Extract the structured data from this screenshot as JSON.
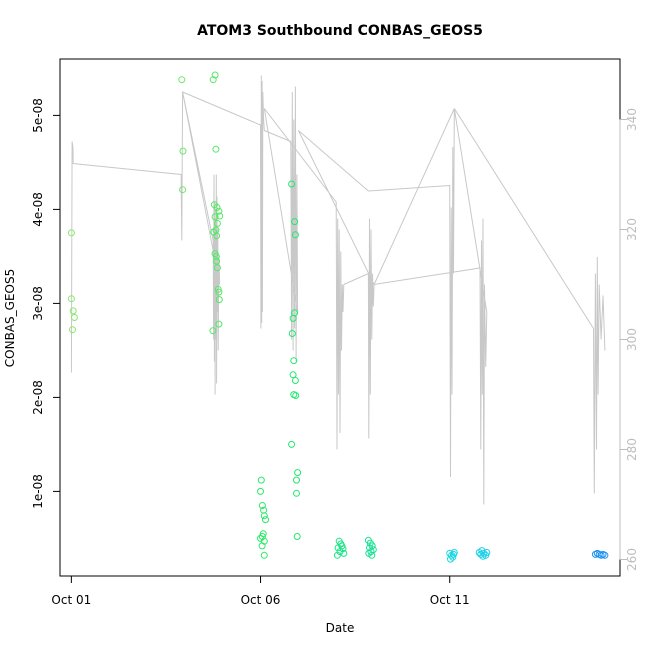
{
  "chart_data": {
    "type": "scatter",
    "title": "ATOM3 Southbound CONBAS_GEOS5",
    "xlabel": "Date",
    "ylabel": "CONBAS_GEOS5",
    "x_ticks": [
      "Oct 01",
      "Oct 06",
      "Oct 11"
    ],
    "y_ticks_left": [
      "1e-08",
      "2e-08",
      "3e-08",
      "4e-08",
      "5e-08"
    ],
    "y_ticks_right": [
      "260",
      "280",
      "300",
      "320",
      "340"
    ],
    "xlim_days": [
      -0.3,
      14.5
    ],
    "ylim_left": [
      1e-09,
      5.6e-08
    ],
    "ylim_right": [
      257,
      351
    ],
    "grid": false,
    "colors": {
      "line": "#c8c8c8",
      "points_early": "#7fe36a",
      "points_mid": "#18e07a",
      "points_late": "#18d8e0",
      "points_end": "#1a8ef0",
      "right_axis": "#bdbdbd"
    },
    "series": [
      {
        "kind": "points",
        "points": [
          {
            "x": 0.0,
            "y": 3.75e-08,
            "c": "#8ae86a"
          },
          {
            "x": 0.0,
            "y": 3.05e-08,
            "c": "#8ae86a"
          },
          {
            "x": 0.05,
            "y": 2.92e-08,
            "c": "#8ae86a"
          },
          {
            "x": 0.08,
            "y": 2.85e-08,
            "c": "#8ae86a"
          },
          {
            "x": 0.03,
            "y": 2.72e-08,
            "c": "#8ae86a"
          },
          {
            "x": 2.92,
            "y": 5.38e-08,
            "c": "#6ee868"
          },
          {
            "x": 2.95,
            "y": 4.62e-08,
            "c": "#6ee868"
          },
          {
            "x": 2.94,
            "y": 4.21e-08,
            "c": "#6ee868"
          },
          {
            "x": 3.75,
            "y": 5.38e-08,
            "c": "#55e866"
          },
          {
            "x": 3.8,
            "y": 5.43e-08,
            "c": "#55e866"
          },
          {
            "x": 3.82,
            "y": 4.64e-08,
            "c": "#55e866"
          },
          {
            "x": 3.78,
            "y": 4.05e-08,
            "c": "#55e866"
          },
          {
            "x": 3.85,
            "y": 4.02e-08,
            "c": "#55e866"
          },
          {
            "x": 3.9,
            "y": 3.98e-08,
            "c": "#55e866"
          },
          {
            "x": 3.92,
            "y": 3.93e-08,
            "c": "#55e866"
          },
          {
            "x": 3.8,
            "y": 3.92e-08,
            "c": "#55e866"
          },
          {
            "x": 3.86,
            "y": 3.85e-08,
            "c": "#55e866"
          },
          {
            "x": 3.82,
            "y": 3.78e-08,
            "c": "#55e866"
          },
          {
            "x": 3.76,
            "y": 3.76e-08,
            "c": "#55e866"
          },
          {
            "x": 3.84,
            "y": 3.72e-08,
            "c": "#55e866"
          },
          {
            "x": 3.8,
            "y": 3.53e-08,
            "c": "#55e866"
          },
          {
            "x": 3.83,
            "y": 3.5e-08,
            "c": "#55e866"
          },
          {
            "x": 3.84,
            "y": 3.45e-08,
            "c": "#55e866"
          },
          {
            "x": 3.86,
            "y": 3.38e-08,
            "c": "#55e866"
          },
          {
            "x": 3.88,
            "y": 3.15e-08,
            "c": "#55e866"
          },
          {
            "x": 3.9,
            "y": 3.12e-08,
            "c": "#55e866"
          },
          {
            "x": 3.91,
            "y": 3.04e-08,
            "c": "#55e866"
          },
          {
            "x": 3.9,
            "y": 2.78e-08,
            "c": "#55e866"
          },
          {
            "x": 3.74,
            "y": 2.71e-08,
            "c": "#55e866"
          },
          {
            "x": 5.02,
            "y": 1.12e-08,
            "c": "#2ee86a"
          },
          {
            "x": 5.0,
            "y": 1e-08,
            "c": "#2ee86a"
          },
          {
            "x": 5.05,
            "y": 8.5e-09,
            "c": "#2ee86a"
          },
          {
            "x": 5.08,
            "y": 8e-09,
            "c": "#2ee86a"
          },
          {
            "x": 5.1,
            "y": 7.4e-09,
            "c": "#2ee86a"
          },
          {
            "x": 5.13,
            "y": 7e-09,
            "c": "#2ee86a"
          },
          {
            "x": 5.07,
            "y": 5.5e-09,
            "c": "#2ee86a"
          },
          {
            "x": 5.05,
            "y": 5.2e-09,
            "c": "#2ee86a"
          },
          {
            "x": 5.0,
            "y": 5e-09,
            "c": "#2ee86a"
          },
          {
            "x": 5.1,
            "y": 4.7e-09,
            "c": "#2ee86a"
          },
          {
            "x": 5.04,
            "y": 4.2e-09,
            "c": "#2ee86a"
          },
          {
            "x": 5.1,
            "y": 3.2e-09,
            "c": "#2ee86a"
          },
          {
            "x": 5.82,
            "y": 4.27e-08,
            "c": "#22e870"
          },
          {
            "x": 5.9,
            "y": 3.87e-08,
            "c": "#22e870"
          },
          {
            "x": 5.92,
            "y": 3.73e-08,
            "c": "#22e870"
          },
          {
            "x": 5.9,
            "y": 2.9e-08,
            "c": "#22e870"
          },
          {
            "x": 5.86,
            "y": 2.84e-08,
            "c": "#22e870"
          },
          {
            "x": 5.84,
            "y": 2.68e-08,
            "c": "#22e870"
          },
          {
            "x": 5.88,
            "y": 2.39e-08,
            "c": "#22e870"
          },
          {
            "x": 5.86,
            "y": 2.24e-08,
            "c": "#22e870"
          },
          {
            "x": 5.92,
            "y": 2.18e-08,
            "c": "#22e870"
          },
          {
            "x": 5.88,
            "y": 2.03e-08,
            "c": "#22e870"
          },
          {
            "x": 5.93,
            "y": 2.02e-08,
            "c": "#22e870"
          },
          {
            "x": 5.82,
            "y": 1.5e-08,
            "c": "#22e870"
          },
          {
            "x": 5.98,
            "y": 1.2e-08,
            "c": "#22e870"
          },
          {
            "x": 5.95,
            "y": 1.12e-08,
            "c": "#22e870"
          },
          {
            "x": 5.95,
            "y": 9.8e-09,
            "c": "#22e870"
          },
          {
            "x": 5.97,
            "y": 5.2e-09,
            "c": "#22e870"
          },
          {
            "x": 7.08,
            "y": 4.7e-09,
            "c": "#1ae486"
          },
          {
            "x": 7.12,
            "y": 4.4e-09,
            "c": "#1ae486"
          },
          {
            "x": 7.05,
            "y": 4e-09,
            "c": "#1ae486"
          },
          {
            "x": 7.15,
            "y": 4.2e-09,
            "c": "#1ae486"
          },
          {
            "x": 7.18,
            "y": 3.9e-09,
            "c": "#1ae486"
          },
          {
            "x": 7.1,
            "y": 3.6e-09,
            "c": "#1ae486"
          },
          {
            "x": 7.2,
            "y": 3.4e-09,
            "c": "#1ae486"
          },
          {
            "x": 7.03,
            "y": 3.2e-09,
            "c": "#1ae486"
          },
          {
            "x": 7.85,
            "y": 4.8e-09,
            "c": "#18e095"
          },
          {
            "x": 7.9,
            "y": 4.5e-09,
            "c": "#18e095"
          },
          {
            "x": 7.95,
            "y": 4.2e-09,
            "c": "#18e095"
          },
          {
            "x": 7.88,
            "y": 4e-09,
            "c": "#18e095"
          },
          {
            "x": 7.98,
            "y": 3.8e-09,
            "c": "#18e095"
          },
          {
            "x": 7.92,
            "y": 3.6e-09,
            "c": "#18e095"
          },
          {
            "x": 7.86,
            "y": 3.4e-09,
            "c": "#18e095"
          },
          {
            "x": 7.94,
            "y": 3.2e-09,
            "c": "#18e095"
          },
          {
            "x": 10.0,
            "y": 3.4e-09,
            "c": "#1ad8e0"
          },
          {
            "x": 10.05,
            "y": 3.2e-09,
            "c": "#1ad8e0"
          },
          {
            "x": 10.1,
            "y": 3.3e-09,
            "c": "#1ad8e0"
          },
          {
            "x": 10.08,
            "y": 3e-09,
            "c": "#1ad8e0"
          },
          {
            "x": 10.02,
            "y": 2.8e-09,
            "c": "#1ad8e0"
          },
          {
            "x": 10.12,
            "y": 3.5e-09,
            "c": "#1ad8e0"
          },
          {
            "x": 10.78,
            "y": 3.5e-09,
            "c": "#1ad0e8"
          },
          {
            "x": 10.85,
            "y": 3.7e-09,
            "c": "#1ad0e8"
          },
          {
            "x": 10.9,
            "y": 3.4e-09,
            "c": "#1ad0e8"
          },
          {
            "x": 10.82,
            "y": 3.3e-09,
            "c": "#1ad0e8"
          },
          {
            "x": 10.95,
            "y": 3.2e-09,
            "c": "#1ad0e8"
          },
          {
            "x": 10.88,
            "y": 3.1e-09,
            "c": "#1ad0e8"
          },
          {
            "x": 10.98,
            "y": 3.5e-09,
            "c": "#1ad0e8"
          },
          {
            "x": 13.85,
            "y": 3.3e-09,
            "c": "#1a90f0"
          },
          {
            "x": 13.9,
            "y": 3.4e-09,
            "c": "#1a90f0"
          },
          {
            "x": 13.95,
            "y": 3.3e-09,
            "c": "#1a90f0"
          },
          {
            "x": 14.0,
            "y": 3.2e-09,
            "c": "#1a90f0"
          },
          {
            "x": 14.05,
            "y": 3.3e-09,
            "c": "#1a90f0"
          },
          {
            "x": 14.1,
            "y": 3.2e-09,
            "c": "#1a90f0"
          }
        ]
      },
      {
        "kind": "line_right",
        "points": [
          [
            0.0,
            294
          ],
          [
            0.02,
            336
          ],
          [
            0.04,
            335
          ],
          [
            0.05,
            332
          ],
          [
            2.9,
            330
          ],
          [
            2.92,
            318
          ],
          [
            2.94,
            345
          ],
          [
            3.75,
            318
          ],
          [
            3.76,
            300
          ],
          [
            3.77,
            330
          ],
          [
            3.78,
            296
          ],
          [
            3.79,
            325
          ],
          [
            3.8,
            290
          ],
          [
            3.81,
            322
          ],
          [
            3.82,
            300
          ],
          [
            3.83,
            330
          ],
          [
            3.84,
            292
          ],
          [
            3.85,
            326
          ],
          [
            3.86,
            305
          ],
          [
            3.87,
            320
          ],
          [
            3.88,
            298
          ],
          [
            3.9,
            315
          ],
          [
            3.92,
            310
          ],
          [
            2.94,
            345
          ],
          [
            5.0,
            339
          ],
          [
            5.01,
            302
          ],
          [
            5.02,
            348
          ],
          [
            5.03,
            303
          ],
          [
            5.04,
            347
          ],
          [
            5.05,
            305
          ],
          [
            5.06,
            345
          ],
          [
            5.08,
            340
          ],
          [
            5.1,
            338
          ],
          [
            5.8,
            336
          ],
          [
            5.82,
            300
          ],
          [
            5.84,
            345
          ],
          [
            5.86,
            298
          ],
          [
            5.88,
            340
          ],
          [
            5.9,
            302
          ],
          [
            5.92,
            346
          ],
          [
            5.94,
            296
          ],
          [
            5.96,
            330
          ],
          [
            5.98,
            305
          ],
          [
            5.1,
            342
          ],
          [
            7.0,
            325
          ],
          [
            7.02,
            280
          ],
          [
            7.04,
            322
          ],
          [
            7.06,
            290
          ],
          [
            7.08,
            320
          ],
          [
            7.1,
            283
          ],
          [
            7.12,
            316
          ],
          [
            7.14,
            298
          ],
          [
            7.16,
            310
          ],
          [
            7.18,
            305
          ],
          [
            7.2,
            310
          ],
          [
            7.85,
            312
          ],
          [
            7.86,
            282
          ],
          [
            7.88,
            322
          ],
          [
            7.9,
            290
          ],
          [
            7.92,
            320
          ],
          [
            7.94,
            300
          ],
          [
            7.96,
            312
          ],
          [
            7.98,
            306
          ],
          [
            8.0,
            310
          ],
          [
            6.0,
            338
          ],
          [
            7.85,
            327
          ],
          [
            10.0,
            328
          ],
          [
            10.02,
            275
          ],
          [
            10.04,
            324
          ],
          [
            10.06,
            290
          ],
          [
            10.08,
            335
          ],
          [
            10.1,
            312
          ],
          [
            10.12,
            342
          ],
          [
            8.0,
            310
          ],
          [
            10.8,
            313
          ],
          [
            10.82,
            280
          ],
          [
            10.84,
            318
          ],
          [
            10.86,
            290
          ],
          [
            10.88,
            322
          ],
          [
            10.9,
            270
          ],
          [
            10.92,
            310
          ],
          [
            10.95,
            295
          ],
          [
            10.98,
            305
          ],
          [
            10.12,
            342
          ],
          [
            13.8,
            302
          ],
          [
            13.82,
            272
          ],
          [
            13.85,
            312
          ],
          [
            13.88,
            280
          ],
          [
            13.9,
            315
          ],
          [
            13.92,
            290
          ],
          [
            13.95,
            310
          ],
          [
            14.0,
            300
          ],
          [
            14.05,
            308
          ],
          [
            14.1,
            298
          ]
        ]
      }
    ]
  }
}
